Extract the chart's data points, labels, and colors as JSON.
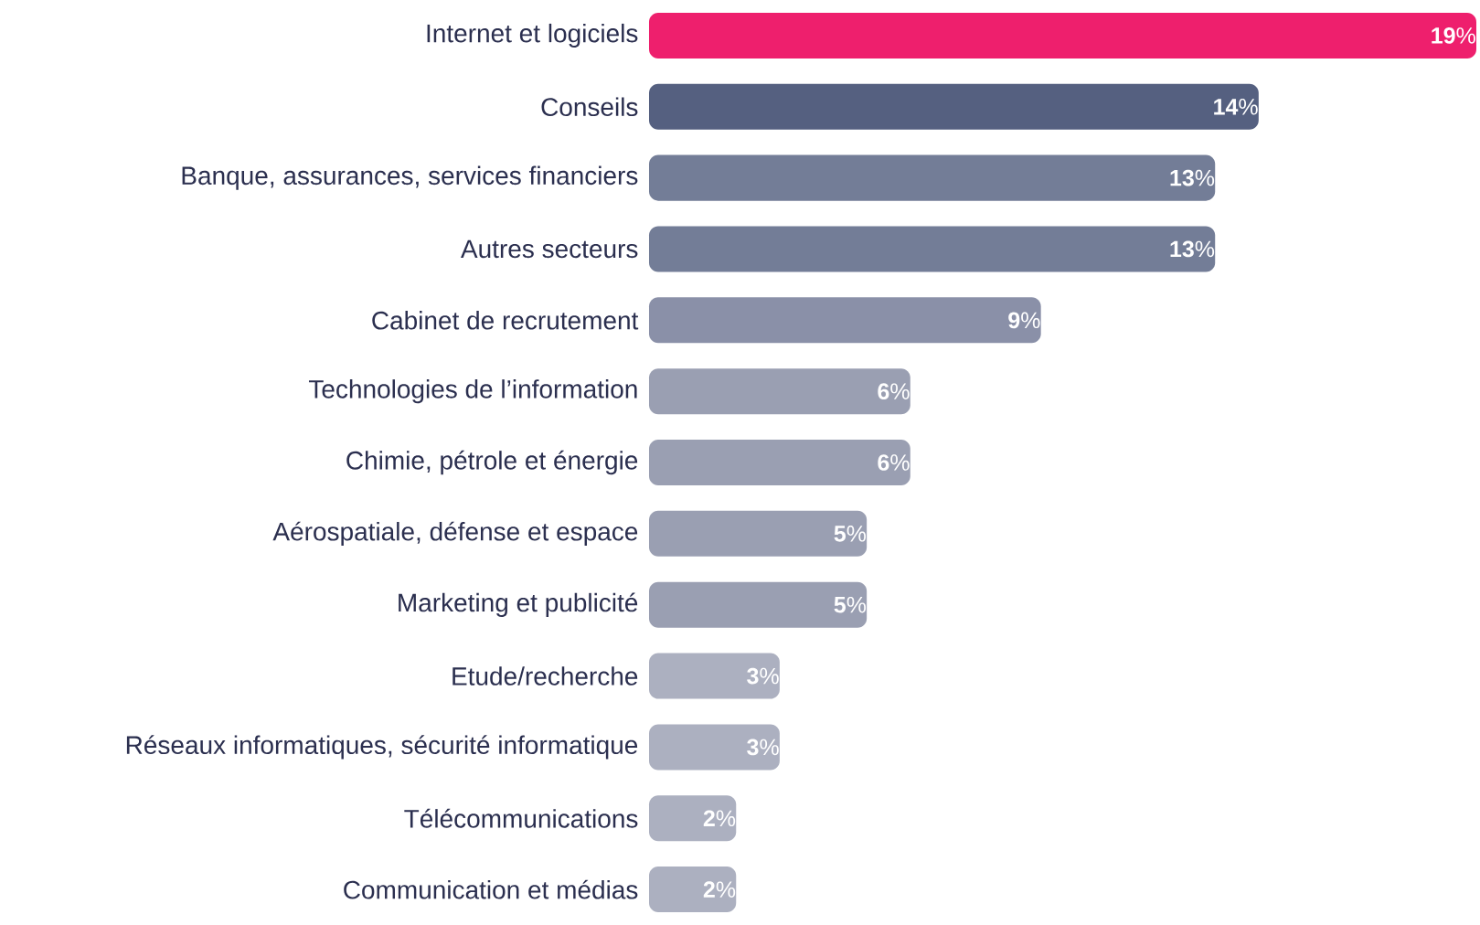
{
  "chart_data": {
    "type": "bar",
    "orientation": "horizontal",
    "tick_labels": "y",
    "categories": [
      "Internet et logiciels",
      "Conseils",
      "Banque, assurances, services financiers",
      "Autres secteurs",
      "Cabinet de recrutement",
      "Technologies de l’information",
      "Chimie, pétrole et énergie",
      "Aérospatiale, défense et espace",
      "Marketing et publicité",
      "Etude/recherche",
      "Réseaux informatiques, sécurité informatique",
      "Télécommunications",
      "Communication et médias"
    ],
    "values": [
      19,
      14,
      13,
      13,
      9,
      6,
      6,
      5,
      5,
      3,
      3,
      2,
      2
    ],
    "value_labels": [
      "**19**%",
      "**14**%",
      "**13**%",
      "**13**%",
      "**9**%",
      "**6**%",
      "**6**%",
      "**5**%",
      "**5**%",
      "**3**%",
      "**3**%",
      "**2**%",
      "**2**%"
    ],
    "colors": [
      "#ee1f6d",
      "#556080",
      "#737d97",
      "#737d97",
      "#8a90a8",
      "#9a9fb2",
      "#9a9fb2",
      "#9a9fb2",
      "#9a9fb2",
      "#acb0c0",
      "#acb0c0",
      "#acb0c0",
      "#acb0c0"
    ]
  }
}
